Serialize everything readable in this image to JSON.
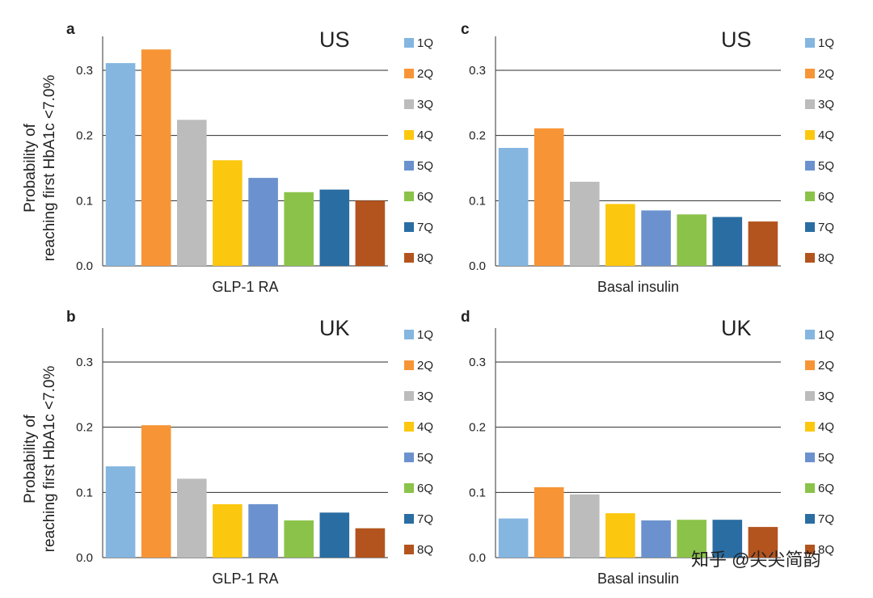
{
  "ylabel": [
    "Probability of",
    "reaching first HbA1c <7.0%"
  ],
  "watermark": "知乎 @尖尖简韵",
  "colors": {
    "1Q": "#84b6e0",
    "2Q": "#f79536",
    "3Q": "#bcbcbc",
    "4Q": "#fcc70f",
    "5Q": "#6b92ce",
    "6Q": "#8bc34a",
    "7Q": "#2a6da2",
    "8Q": "#b3541e"
  },
  "chart_data": [
    {
      "panel": "a",
      "type": "bar",
      "region": "US",
      "xlabel": "GLP-1 RA",
      "ylabel": "Probability of reaching first HbA1c <7.0%",
      "categories": [
        "1Q",
        "2Q",
        "3Q",
        "4Q",
        "5Q",
        "6Q",
        "7Q",
        "8Q"
      ],
      "values": [
        0.311,
        0.332,
        0.224,
        0.162,
        0.135,
        0.113,
        0.117,
        0.1
      ],
      "ylim": [
        0,
        0.35
      ],
      "yticks": [
        "0.0",
        "0.1",
        "0.2",
        "0.3"
      ],
      "legend": "right"
    },
    {
      "panel": "c",
      "type": "bar",
      "region": "US",
      "xlabel": "Basal insulin",
      "ylabel": "",
      "categories": [
        "1Q",
        "2Q",
        "3Q",
        "4Q",
        "5Q",
        "6Q",
        "7Q",
        "8Q"
      ],
      "values": [
        0.181,
        0.211,
        0.129,
        0.095,
        0.085,
        0.079,
        0.075,
        0.068
      ],
      "ylim": [
        0,
        0.35
      ],
      "yticks": [
        "0.0",
        "0.1",
        "0.2",
        "0.3"
      ],
      "legend": "right"
    },
    {
      "panel": "b",
      "type": "bar",
      "region": "UK",
      "xlabel": "GLP-1 RA",
      "ylabel": "Probability of reaching first HbA1c <7.0%",
      "categories": [
        "1Q",
        "2Q",
        "3Q",
        "4Q",
        "5Q",
        "6Q",
        "7Q",
        "8Q"
      ],
      "values": [
        0.14,
        0.203,
        0.121,
        0.082,
        0.082,
        0.057,
        0.069,
        0.045
      ],
      "ylim": [
        0,
        0.35
      ],
      "yticks": [
        "0.0",
        "0.1",
        "0.2",
        "0.3"
      ],
      "legend": "right"
    },
    {
      "panel": "d",
      "type": "bar",
      "region": "UK",
      "xlabel": "Basal insulin",
      "ylabel": "",
      "categories": [
        "1Q",
        "2Q",
        "3Q",
        "4Q",
        "5Q",
        "6Q",
        "7Q",
        "8Q"
      ],
      "values": [
        0.06,
        0.108,
        0.097,
        0.068,
        0.057,
        0.058,
        0.058,
        0.047
      ],
      "ylim": [
        0,
        0.35
      ],
      "yticks": [
        "0.0",
        "0.1",
        "0.2",
        "0.3"
      ],
      "legend": "right"
    }
  ]
}
